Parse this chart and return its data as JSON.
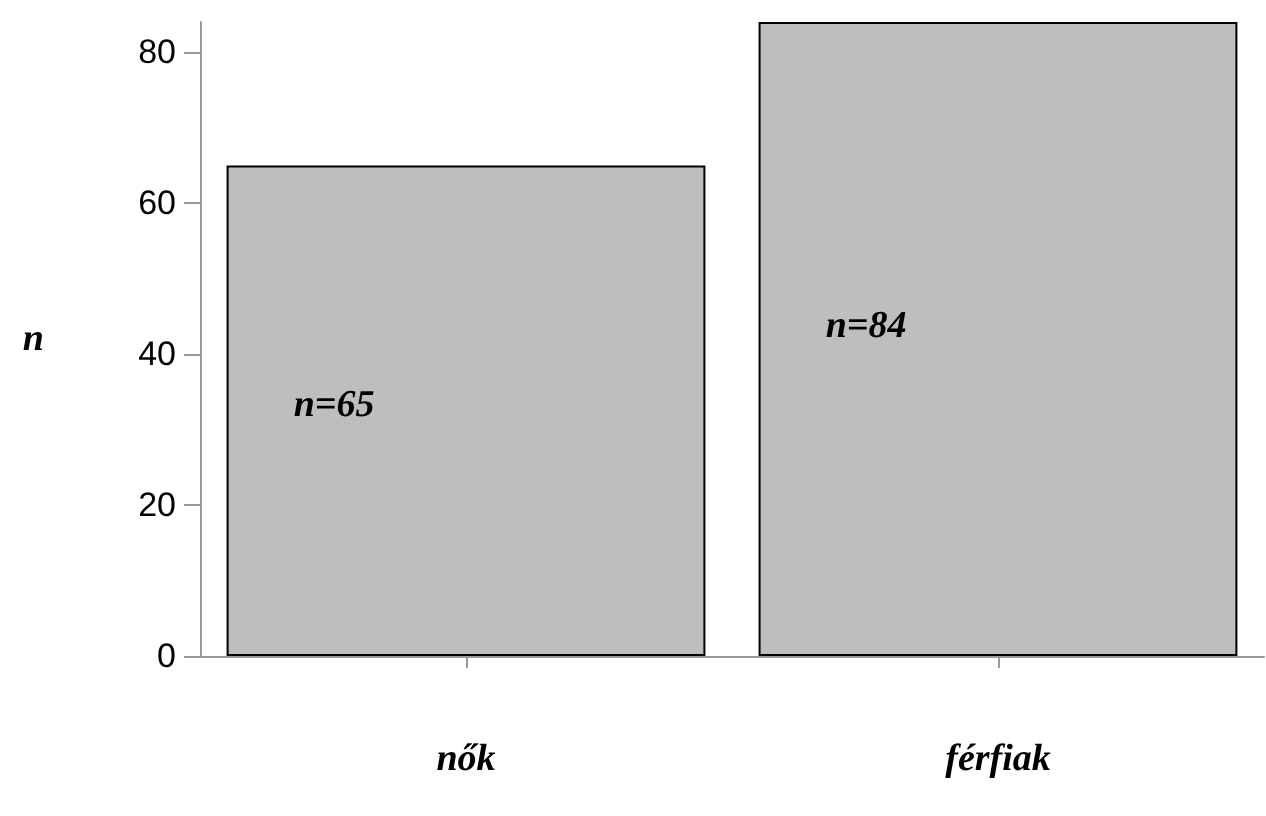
{
  "chart_data": {
    "type": "bar",
    "ylabel": "n",
    "categories": [
      "nők",
      "férfiak"
    ],
    "values": [
      65,
      84
    ],
    "color": "#bebebe",
    "value_labels": [
      "n=65",
      "n=84"
    ],
    "ylim": [
      0,
      84
    ],
    "yticks": [
      0,
      20,
      40,
      60,
      80
    ]
  }
}
